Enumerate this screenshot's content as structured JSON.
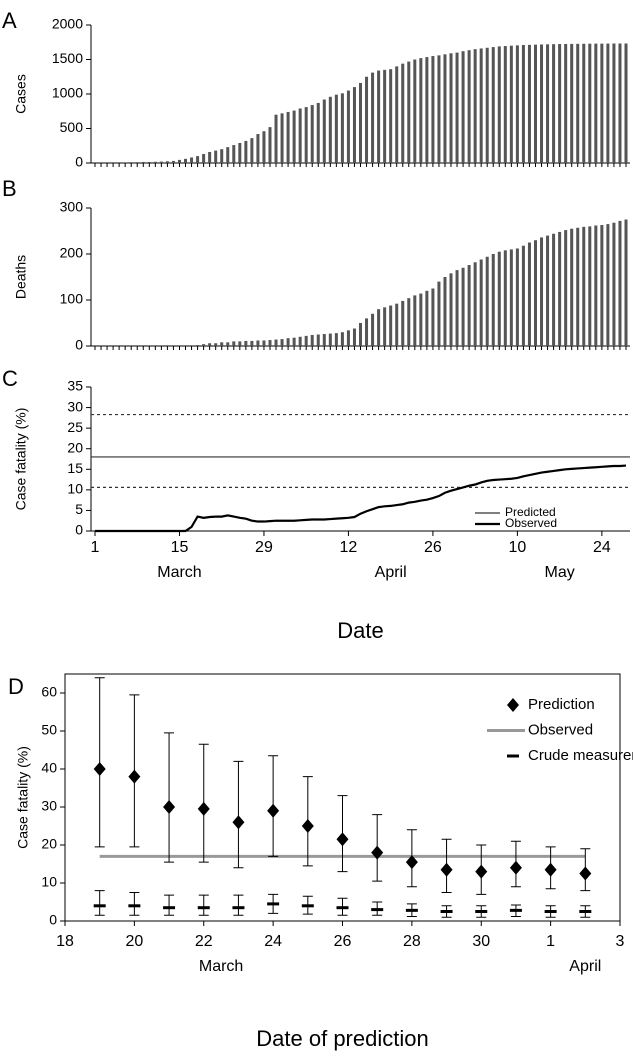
{
  "chart_data": [
    {
      "type": "bar",
      "panel_label": "A",
      "ylabel": "Cases",
      "x": [
        1,
        2,
        3,
        4,
        5,
        6,
        7,
        8,
        9,
        10,
        11,
        12,
        13,
        14,
        15,
        16,
        17,
        18,
        19,
        20,
        21,
        22,
        23,
        24,
        25,
        26,
        27,
        28,
        29,
        30,
        31,
        32,
        33,
        34,
        35,
        36,
        37,
        38,
        39,
        40,
        41,
        42,
        43,
        44,
        45,
        46,
        47,
        48,
        49,
        50,
        51,
        52,
        53,
        54,
        55,
        56,
        57,
        58,
        59,
        60,
        61,
        62,
        63,
        64,
        65,
        66,
        67,
        68,
        69,
        70,
        71,
        72,
        73,
        74,
        75,
        76,
        77,
        78,
        79,
        80,
        81,
        82,
        83,
        84,
        85,
        86,
        87,
        88,
        89
      ],
      "values": [
        0,
        0,
        0,
        0,
        0,
        10,
        12,
        12,
        15,
        15,
        18,
        20,
        25,
        30,
        45,
        60,
        80,
        100,
        130,
        160,
        180,
        200,
        230,
        260,
        290,
        320,
        360,
        420,
        460,
        520,
        700,
        720,
        740,
        760,
        790,
        810,
        840,
        870,
        920,
        960,
        990,
        1010,
        1050,
        1100,
        1160,
        1250,
        1310,
        1340,
        1350,
        1360,
        1400,
        1440,
        1470,
        1500,
        1520,
        1535,
        1550,
        1560,
        1575,
        1590,
        1600,
        1620,
        1635,
        1650,
        1660,
        1670,
        1680,
        1690,
        1695,
        1700,
        1705,
        1710,
        1712,
        1715,
        1718,
        1720,
        1722,
        1724,
        1725,
        1726,
        1727,
        1728,
        1729,
        1730,
        1730,
        1731,
        1732,
        1732,
        1732
      ],
      "color": "#555555",
      "xlim": [
        1,
        89
      ],
      "ylim": [
        0,
        2000
      ],
      "yticks": [
        0,
        500,
        1000,
        1500,
        2000
      ]
    },
    {
      "type": "bar",
      "panel_label": "B",
      "ylabel": "Deaths",
      "x": [
        1,
        2,
        3,
        4,
        5,
        6,
        7,
        8,
        9,
        10,
        11,
        12,
        13,
        14,
        15,
        16,
        17,
        18,
        19,
        20,
        21,
        22,
        23,
        24,
        25,
        26,
        27,
        28,
        29,
        30,
        31,
        32,
        33,
        34,
        35,
        36,
        37,
        38,
        39,
        40,
        41,
        42,
        43,
        44,
        45,
        46,
        47,
        48,
        49,
        50,
        51,
        52,
        53,
        54,
        55,
        56,
        57,
        58,
        59,
        60,
        61,
        62,
        63,
        64,
        65,
        66,
        67,
        68,
        69,
        70,
        71,
        72,
        73,
        74,
        75,
        76,
        77,
        78,
        79,
        80,
        81,
        82,
        83,
        84,
        85,
        86,
        87,
        88,
        89
      ],
      "values": [
        0,
        0,
        0,
        0,
        0,
        0,
        0,
        0,
        0,
        0,
        0,
        0,
        0,
        0,
        0,
        0,
        0,
        2,
        4,
        6,
        6,
        8,
        8,
        10,
        10,
        11,
        11,
        12,
        12,
        13,
        14,
        15,
        17,
        18,
        20,
        22,
        24,
        25,
        26,
        27,
        28,
        30,
        34,
        38,
        50,
        60,
        70,
        80,
        84,
        88,
        92,
        98,
        104,
        110,
        114,
        120,
        125,
        140,
        150,
        158,
        165,
        170,
        176,
        182,
        188,
        194,
        200,
        205,
        208,
        210,
        212,
        218,
        225,
        230,
        236,
        240,
        244,
        248,
        252,
        255,
        257,
        259,
        260,
        262,
        263,
        265,
        268,
        272,
        275
      ],
      "color": "#555555",
      "xlim": [
        1,
        89
      ],
      "ylim": [
        0,
        300
      ],
      "yticks": [
        0,
        100,
        200,
        300
      ]
    },
    {
      "type": "line",
      "panel_label": "C",
      "ylabel": "Case fatality (%)",
      "xlabel": "Date",
      "x": [
        1,
        2,
        3,
        4,
        5,
        6,
        7,
        8,
        9,
        10,
        11,
        12,
        13,
        14,
        15,
        16,
        17,
        18,
        19,
        20,
        21,
        22,
        23,
        24,
        25,
        26,
        27,
        28,
        29,
        30,
        31,
        32,
        33,
        34,
        35,
        36,
        37,
        38,
        39,
        40,
        41,
        42,
        43,
        44,
        45,
        46,
        47,
        48,
        49,
        50,
        51,
        52,
        53,
        54,
        55,
        56,
        57,
        58,
        59,
        60,
        61,
        62,
        63,
        64,
        65,
        66,
        67,
        68,
        69,
        70,
        71,
        72,
        73,
        74,
        75,
        76,
        77,
        78,
        79,
        80,
        81,
        82,
        83,
        84,
        85,
        86,
        87,
        88,
        89
      ],
      "series": [
        {
          "name": "Observed",
          "color": "#000000",
          "values": [
            0,
            0,
            0,
            0,
            0,
            0,
            0,
            0,
            0,
            0,
            0,
            0,
            0,
            0,
            0,
            0,
            1,
            3.5,
            3.2,
            3.4,
            3.5,
            3.5,
            3.8,
            3.5,
            3.2,
            3,
            2.5,
            2.3,
            2.3,
            2.4,
            2.5,
            2.5,
            2.5,
            2.5,
            2.6,
            2.7,
            2.8,
            2.8,
            2.8,
            2.9,
            3,
            3.1,
            3.2,
            3.4,
            4.2,
            4.8,
            5.3,
            5.8,
            6,
            6.1,
            6.3,
            6.5,
            6.9,
            7.1,
            7.4,
            7.6,
            8,
            8.5,
            9.3,
            9.8,
            10.2,
            10.6,
            11,
            11.3,
            11.8,
            12.2,
            12.4,
            12.5,
            12.6,
            12.7,
            12.9,
            13.3,
            13.6,
            13.9,
            14.2,
            14.4,
            14.6,
            14.8,
            15,
            15.1,
            15.2,
            15.3,
            15.4,
            15.5,
            15.6,
            15.7,
            15.8,
            15.8,
            15.9
          ]
        }
      ],
      "predicted": {
        "name": "Predicted",
        "value": 18,
        "lower": 10.6,
        "upper": 28.3,
        "color": "#333333"
      },
      "xlim": [
        1,
        89
      ],
      "ylim": [
        0,
        35
      ],
      "yticks": [
        0,
        5,
        10,
        15,
        20,
        25,
        30,
        35
      ],
      "xticks": [
        1,
        15,
        29,
        {
          "value": 43,
          "label": "12"
        },
        {
          "value": 57,
          "label": "26"
        },
        {
          "value": 71,
          "label": "10"
        },
        {
          "value": 85,
          "label": "24"
        }
      ],
      "month_labels": [
        {
          "value": 15,
          "label": "March"
        },
        {
          "value": 50,
          "label": "April"
        },
        {
          "value": 78,
          "label": "May"
        }
      ]
    },
    {
      "type": "errorscatter",
      "panel_label": "D",
      "ylabel": "Case fatality (%)",
      "xlabel": "Date of prediction",
      "x": [
        19,
        20,
        21,
        22,
        23,
        24,
        25,
        26,
        27,
        28,
        29,
        30,
        31,
        32,
        33
      ],
      "series": [
        {
          "name": "Prediction",
          "marker": "diamond",
          "color": "#000000",
          "values": [
            40,
            38,
            30,
            29.5,
            26,
            29,
            25,
            21.5,
            18,
            15.5,
            13.5,
            13,
            14,
            13.5,
            12.5
          ],
          "upper": [
            64,
            59.5,
            49.5,
            46.5,
            42,
            43.5,
            38,
            33,
            28,
            24,
            21.5,
            20,
            21,
            19.5,
            19
          ],
          "lower": [
            19.5,
            19.5,
            15.5,
            15.5,
            14,
            17,
            14.5,
            13,
            10.5,
            9,
            7.5,
            7,
            9,
            8.5,
            8
          ]
        },
        {
          "name": "Crude measurement",
          "marker": "dash",
          "color": "#000000",
          "values": [
            4,
            4,
            3.5,
            3.5,
            3.5,
            4.5,
            4,
            3.5,
            3,
            2.8,
            2.5,
            2.5,
            2.8,
            2.5,
            2.5
          ],
          "upper": [
            8,
            7.5,
            6.8,
            6.8,
            6.8,
            7,
            6.5,
            6,
            5,
            4.5,
            4,
            4,
            4.2,
            4,
            4
          ],
          "lower": [
            1.5,
            1.5,
            1.5,
            1.5,
            1.5,
            2,
            1.8,
            1.5,
            1.5,
            1.2,
            1,
            1,
            1.2,
            1,
            1
          ]
        }
      ],
      "observed": {
        "name": "Observed",
        "value": 17,
        "color": "#999999"
      },
      "xlim": [
        18,
        34
      ],
      "ylim": [
        0,
        65
      ],
      "yticks": [
        0,
        10,
        20,
        30,
        40,
        50,
        60
      ],
      "xticks": [
        18,
        20,
        22,
        24,
        26,
        28,
        30,
        {
          "value": 32,
          "label": "1"
        },
        {
          "value": 34,
          "label": "3"
        }
      ],
      "month_labels": [
        {
          "value": 22.5,
          "label": "March"
        },
        {
          "value": 33,
          "label": "April"
        }
      ]
    }
  ]
}
